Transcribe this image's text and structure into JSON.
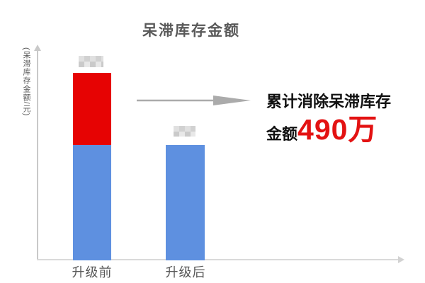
{
  "chart_data": {
    "type": "bar",
    "stacked": true,
    "title": "呆滞库存金额",
    "ylabel": "(呆滞库存金额/元)",
    "xlabel": "",
    "categories": [
      "升级前",
      "升级后"
    ],
    "series": [
      {
        "name": "remaining-stagnant-inventory",
        "color": "#5E90E0",
        "values_relative": [
          0.615,
          0.615
        ]
      },
      {
        "name": "eliminated-stagnant-inventory",
        "color": "#E60303",
        "values_relative": [
          0.385,
          0
        ]
      }
    ],
    "gridlines": false,
    "legend": "none",
    "axis_ticks": "none",
    "axis_style": "arrow-ended gray lines",
    "data_labels": {
      "present": true,
      "readable": false,
      "style": "pixelated-redacted"
    },
    "annotation": {
      "line1": "累计消除呆滞库存",
      "line2_label": "金额",
      "line2_value": "490万",
      "full_text": "累计消除呆滞库存金额490万"
    }
  },
  "colors": {
    "bar_blue": "#5E90E0",
    "bar_red": "#E60303",
    "annotation_value_red": "#E31212",
    "text_gray": "#595959",
    "annotation_black": "#111111",
    "arrow_gray": "#ABABAB",
    "y_axis_gray": "#C9C9C9",
    "x_axis_gray": "#DADADA"
  }
}
